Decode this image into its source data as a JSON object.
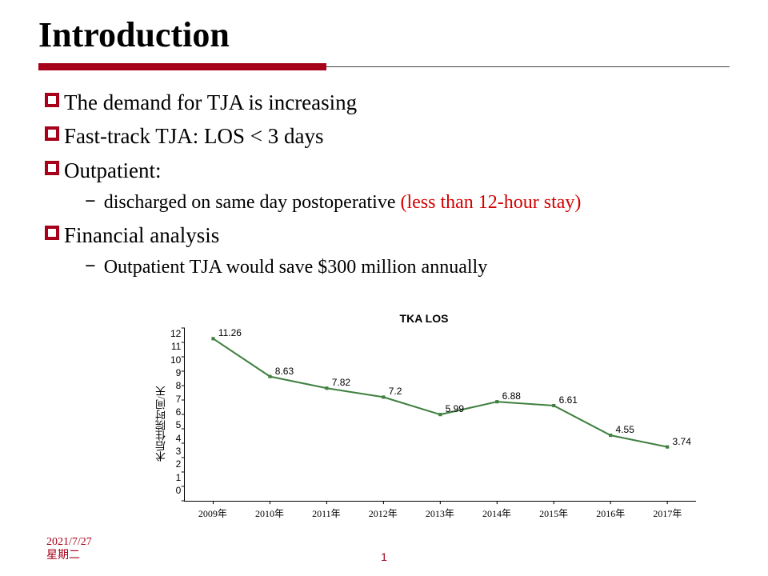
{
  "title": "Introduction",
  "colors": {
    "accent": "#a6001a",
    "highlight": "#d40000",
    "text": "#000000",
    "line": "#408040",
    "marker": "#408040",
    "background": "#ffffff"
  },
  "bullets": [
    {
      "text": "The demand for TJA is increasing",
      "subs": []
    },
    {
      "text": "Fast-track TJA: LOS < 3 days",
      "subs": []
    },
    {
      "text": "Outpatient:",
      "subs": [
        {
          "text": "discharged on same day postoperative ",
          "red_suffix": " (less than 12-hour stay)"
        }
      ]
    },
    {
      "text": "Financial analysis",
      "subs": [
        {
          "text": "Outpatient TJA would save $300 million annually",
          "red_suffix": ""
        }
      ]
    }
  ],
  "chart": {
    "type": "line",
    "title": "TKA LOS",
    "ylabel": "术后住院时间/天",
    "ylim": [
      0,
      12
    ],
    "ytick_step": 1,
    "yticks": [
      12,
      11,
      10,
      9,
      8,
      7,
      6,
      5,
      4,
      3,
      2,
      1,
      0
    ],
    "categories": [
      "2009年",
      "2010年",
      "2011年",
      "2012年",
      "2013年",
      "2014年",
      "2015年",
      "2016年",
      "2017年"
    ],
    "values": [
      11.26,
      8.63,
      7.82,
      7.2,
      5.99,
      6.88,
      6.61,
      4.55,
      3.74
    ],
    "line_color": "#408040",
    "line_width": 2,
    "marker_color": "#408040",
    "marker_size": 4,
    "label_fontsize": 12,
    "title_fontsize": 14,
    "background_color": "#ffffff"
  },
  "footer": {
    "date": "2021/7/27",
    "weekday": "星期二",
    "page": "1"
  }
}
